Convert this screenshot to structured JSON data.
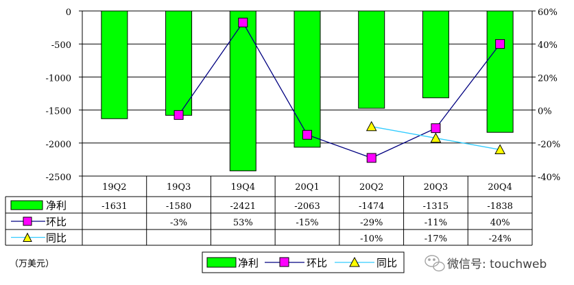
{
  "chart_data": {
    "type": "bar",
    "categories": [
      "19Q2",
      "19Q3",
      "19Q4",
      "20Q1",
      "20Q2",
      "20Q3",
      "20Q4"
    ],
    "series": [
      {
        "name": "净利",
        "kind": "bar",
        "axis": "left",
        "color": "#00ff00",
        "values": [
          -1631,
          -1580,
          -2421,
          -2063,
          -1474,
          -1315,
          -1838
        ],
        "labels": [
          "-1631",
          "-1580",
          "-2421",
          "-2063",
          "-1474",
          "-1315",
          "-1838"
        ]
      },
      {
        "name": "环比",
        "kind": "line",
        "axis": "right",
        "color": "#ff00ff",
        "line_color": "#000080",
        "values": [
          null,
          -3,
          53,
          -15,
          -29,
          -11,
          40
        ],
        "labels": [
          "",
          "-3%",
          "53%",
          "-15%",
          "-29%",
          "-11%",
          "40%"
        ]
      },
      {
        "name": "同比",
        "kind": "line",
        "axis": "right",
        "color": "#ffff00",
        "line_color": "#33ccff",
        "values": [
          null,
          null,
          null,
          null,
          -10,
          -17,
          -24
        ],
        "labels": [
          "",
          "",
          "",
          "",
          "-10%",
          "-17%",
          "-24%"
        ]
      }
    ],
    "y_left": {
      "min": -2500,
      "max": 0,
      "ticks": [
        "0",
        "-500",
        "-1000",
        "-1500",
        "-2000",
        "-2500"
      ]
    },
    "y_right": {
      "min": -40,
      "max": 60,
      "ticks": [
        "60%",
        "40%",
        "20%",
        "0%",
        "-20%",
        "-40%"
      ]
    },
    "unit_label": "（万美元）",
    "grid": true,
    "legend": {
      "position": "bottom",
      "items": [
        "净利",
        "环比",
        "同比"
      ]
    }
  },
  "watermark": "微信号: touchweb"
}
